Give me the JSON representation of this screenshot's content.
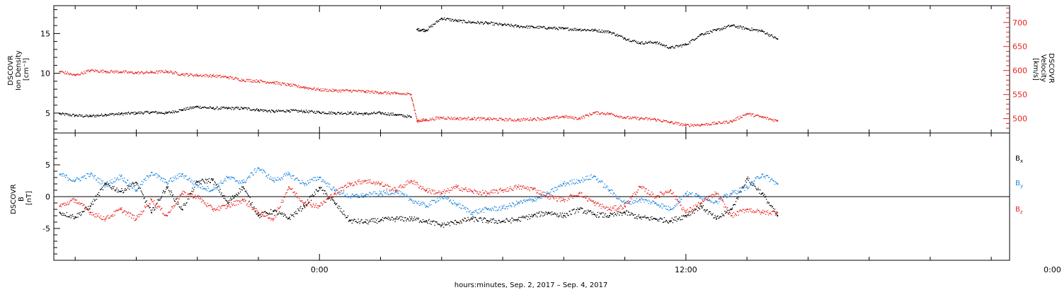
{
  "chart_data": [
    {
      "type": "scatter",
      "panel": "plasma",
      "left_axis": {
        "label_lines": [
          "DSCOVR",
          "Ion Density",
          "[cm⁻³]"
        ],
        "ticks": [
          5,
          10,
          15
        ],
        "ylim": [
          2.5,
          18.5
        ],
        "color": "#000000"
      },
      "right_axis": {
        "label_lines": [
          "DSCOVR",
          "Velocity",
          "[km/s]"
        ],
        "ticks": [
          500,
          550,
          600,
          650,
          700
        ],
        "ylim": [
          470,
          735
        ],
        "color": "#e8231f"
      },
      "series": [
        {
          "name": "",
          "axis": "left",
          "color": "#000000",
          "points": [
            [
              -8.5,
              4.9
            ],
            [
              -8.0,
              4.7
            ],
            [
              -7.5,
              4.6
            ],
            [
              -7.0,
              4.8
            ],
            [
              -6.5,
              4.9
            ],
            [
              -6.0,
              5.0
            ],
            [
              -5.5,
              5.1
            ],
            [
              -5.0,
              5.0
            ],
            [
              -4.5,
              5.4
            ],
            [
              -4.0,
              5.8
            ],
            [
              -3.5,
              5.6
            ],
            [
              -3.0,
              5.6
            ],
            [
              -2.5,
              5.6
            ],
            [
              -2.0,
              5.4
            ],
            [
              -1.5,
              5.2
            ],
            [
              -1.0,
              5.3
            ],
            [
              -0.5,
              5.2
            ],
            [
              0.0,
              5.1
            ],
            [
              0.5,
              5.0
            ],
            [
              1.0,
              5.0
            ],
            [
              1.5,
              4.9
            ],
            [
              2.0,
              5.0
            ],
            [
              2.5,
              4.8
            ],
            [
              3.0,
              4.5
            ],
            [
              3.2,
              15.5
            ],
            [
              3.5,
              15.4
            ],
            [
              4.0,
              16.9
            ],
            [
              4.5,
              16.6
            ],
            [
              5.0,
              16.4
            ],
            [
              5.5,
              16.3
            ],
            [
              6.0,
              16.1
            ],
            [
              6.5,
              15.9
            ],
            [
              7.0,
              15.8
            ],
            [
              7.5,
              15.7
            ],
            [
              8.0,
              15.6
            ],
            [
              8.5,
              15.5
            ],
            [
              9.0,
              15.4
            ],
            [
              9.5,
              15.2
            ],
            [
              10.0,
              14.4
            ],
            [
              10.5,
              13.8
            ],
            [
              11.0,
              13.9
            ],
            [
              11.5,
              13.2
            ],
            [
              12.0,
              13.6
            ],
            [
              12.5,
              14.9
            ],
            [
              13.0,
              15.4
            ],
            [
              13.5,
              16.0
            ],
            [
              14.0,
              15.6
            ],
            [
              14.5,
              15.3
            ],
            [
              15.0,
              14.3
            ]
          ]
        },
        {
          "name": "",
          "axis": "right",
          "color": "#e8231f",
          "points": [
            [
              -8.5,
              598
            ],
            [
              -8.0,
              590
            ],
            [
              -7.5,
              600
            ],
            [
              -7.0,
              598
            ],
            [
              -6.5,
              597
            ],
            [
              -6.0,
              595
            ],
            [
              -5.5,
              596
            ],
            [
              -5.0,
              598
            ],
            [
              -4.5,
              592
            ],
            [
              -4.0,
              590
            ],
            [
              -3.5,
              589
            ],
            [
              -3.0,
              586
            ],
            [
              -2.5,
              580
            ],
            [
              -2.0,
              578
            ],
            [
              -1.5,
              575
            ],
            [
              -1.0,
              570
            ],
            [
              -0.5,
              565
            ],
            [
              0.0,
              560
            ],
            [
              0.5,
              558
            ],
            [
              1.0,
              558
            ],
            [
              1.5,
              556
            ],
            [
              2.0,
              554
            ],
            [
              2.5,
              552
            ],
            [
              3.0,
              550
            ],
            [
              3.2,
              495
            ],
            [
              3.5,
              497
            ],
            [
              4.0,
              502
            ],
            [
              4.5,
              500
            ],
            [
              5.0,
              500
            ],
            [
              5.5,
              499
            ],
            [
              6.0,
              498
            ],
            [
              6.5,
              497
            ],
            [
              7.0,
              499
            ],
            [
              7.5,
              500
            ],
            [
              8.0,
              504
            ],
            [
              8.5,
              500
            ],
            [
              9.0,
              512
            ],
            [
              9.5,
              510
            ],
            [
              10.0,
              502
            ],
            [
              10.5,
              500
            ],
            [
              11.0,
              498
            ],
            [
              11.5,
              492
            ],
            [
              12.0,
              486
            ],
            [
              12.5,
              487
            ],
            [
              13.0,
              490
            ],
            [
              13.5,
              494
            ],
            [
              14.0,
              510
            ],
            [
              14.5,
              503
            ],
            [
              15.0,
              495
            ]
          ]
        }
      ]
    },
    {
      "type": "scatter",
      "panel": "magnetic-field",
      "left_axis": {
        "label_lines": [
          "DSCOVR",
          "B",
          "[nT]"
        ],
        "ticks": [
          -5,
          0,
          5
        ],
        "ylim": [
          -10,
          10
        ],
        "color": "#000000"
      },
      "zero_line": true,
      "legend": {
        "position": "right",
        "items": [
          {
            "text": "B",
            "sub": "x",
            "color": "#000000"
          },
          {
            "text": "B",
            "sub": "y",
            "color": "#1f86dd"
          },
          {
            "text": "B",
            "sub": "z",
            "color": "#e8231f"
          }
        ]
      },
      "series": [
        {
          "name": "Bx",
          "color": "#000000",
          "points": [
            [
              -8.5,
              -2.5
            ],
            [
              -8.0,
              -3.2
            ],
            [
              -7.5,
              -1.5
            ],
            [
              -7.0,
              2.0
            ],
            [
              -6.5,
              0.8
            ],
            [
              -6.0,
              2.2
            ],
            [
              -5.5,
              -2.5
            ],
            [
              -5.0,
              1.5
            ],
            [
              -4.5,
              -2.0
            ],
            [
              -4.0,
              2.3
            ],
            [
              -3.5,
              2.6
            ],
            [
              -3.0,
              -1.0
            ],
            [
              -2.5,
              1.5
            ],
            [
              -2.0,
              -3.0
            ],
            [
              -1.5,
              -2.3
            ],
            [
              -1.0,
              -3.4
            ],
            [
              -0.5,
              -1.5
            ],
            [
              0.0,
              1.4
            ],
            [
              0.5,
              -1.0
            ],
            [
              1.0,
              -3.8
            ],
            [
              1.5,
              -4.0
            ],
            [
              2.0,
              -3.7
            ],
            [
              2.5,
              -3.5
            ],
            [
              3.0,
              -3.5
            ],
            [
              3.5,
              -3.8
            ],
            [
              4.0,
              -4.5
            ],
            [
              4.5,
              -4.0
            ],
            [
              5.0,
              -3.5
            ],
            [
              5.5,
              -3.8
            ],
            [
              6.0,
              -3.9
            ],
            [
              6.5,
              -3.6
            ],
            [
              7.0,
              -3.0
            ],
            [
              7.5,
              -2.5
            ],
            [
              8.0,
              -3.0
            ],
            [
              8.5,
              -2.0
            ],
            [
              9.0,
              -2.8
            ],
            [
              9.5,
              -3.0
            ],
            [
              10.0,
              -2.5
            ],
            [
              10.5,
              -3.3
            ],
            [
              11.0,
              -3.5
            ],
            [
              11.5,
              -3.8
            ],
            [
              12.0,
              -3.0
            ],
            [
              12.5,
              -1.5
            ],
            [
              13.0,
              -3.5
            ],
            [
              13.5,
              -2.0
            ],
            [
              14.0,
              2.8
            ],
            [
              14.5,
              0.5
            ],
            [
              15.0,
              -3.0
            ]
          ]
        },
        {
          "name": "By",
          "color": "#1f86dd",
          "points": [
            [
              -8.5,
              3.5
            ],
            [
              -8.0,
              2.5
            ],
            [
              -7.5,
              3.5
            ],
            [
              -7.0,
              1.8
            ],
            [
              -6.5,
              3.2
            ],
            [
              -6.0,
              1.0
            ],
            [
              -5.5,
              3.8
            ],
            [
              -5.0,
              2.2
            ],
            [
              -4.5,
              3.5
            ],
            [
              -4.0,
              1.8
            ],
            [
              -3.5,
              1.0
            ],
            [
              -3.0,
              3.0
            ],
            [
              -2.5,
              2.2
            ],
            [
              -2.0,
              4.5
            ],
            [
              -1.5,
              2.5
            ],
            [
              -1.0,
              3.5
            ],
            [
              -0.5,
              2.0
            ],
            [
              0.0,
              3.0
            ],
            [
              0.5,
              1.0
            ],
            [
              1.0,
              0.0
            ],
            [
              1.5,
              0.2
            ],
            [
              2.0,
              0.5
            ],
            [
              2.5,
              0.8
            ],
            [
              3.0,
              -0.5
            ],
            [
              3.5,
              -1.5
            ],
            [
              4.0,
              0.0
            ],
            [
              4.5,
              -1.2
            ],
            [
              5.0,
              -2.5
            ],
            [
              5.5,
              -2.0
            ],
            [
              6.0,
              -1.8
            ],
            [
              6.5,
              -1.0
            ],
            [
              7.0,
              -0.5
            ],
            [
              7.5,
              0.5
            ],
            [
              8.0,
              2.0
            ],
            [
              8.5,
              2.5
            ],
            [
              9.0,
              3.2
            ],
            [
              9.5,
              1.0
            ],
            [
              10.0,
              -1.0
            ],
            [
              10.5,
              -0.5
            ],
            [
              11.0,
              -1.0
            ],
            [
              11.5,
              -2.0
            ],
            [
              12.0,
              0.5
            ],
            [
              12.5,
              0.0
            ],
            [
              13.0,
              -0.8
            ],
            [
              13.5,
              0.5
            ],
            [
              14.0,
              1.5
            ],
            [
              14.5,
              3.5
            ],
            [
              15.0,
              2.0
            ]
          ]
        },
        {
          "name": "Bz",
          "color": "#e8231f",
          "points": [
            [
              -8.5,
              -1.5
            ],
            [
              -8.0,
              -0.5
            ],
            [
              -7.5,
              -2.5
            ],
            [
              -7.0,
              -3.5
            ],
            [
              -6.5,
              -2.0
            ],
            [
              -6.0,
              -3.5
            ],
            [
              -5.5,
              -0.5
            ],
            [
              -5.0,
              -3.0
            ],
            [
              -4.5,
              0.5
            ],
            [
              -4.0,
              0.0
            ],
            [
              -3.5,
              -2.0
            ],
            [
              -3.0,
              -1.5
            ],
            [
              -2.5,
              -0.5
            ],
            [
              -2.0,
              -2.5
            ],
            [
              -1.5,
              -3.5
            ],
            [
              -1.0,
              1.5
            ],
            [
              -0.5,
              -1.0
            ],
            [
              0.0,
              -1.5
            ],
            [
              0.5,
              0.5
            ],
            [
              1.0,
              2.0
            ],
            [
              1.5,
              2.5
            ],
            [
              2.0,
              2.0
            ],
            [
              2.5,
              1.0
            ],
            [
              3.0,
              2.5
            ],
            [
              3.5,
              1.0
            ],
            [
              4.0,
              0.5
            ],
            [
              4.5,
              1.5
            ],
            [
              5.0,
              0.8
            ],
            [
              5.5,
              0.5
            ],
            [
              6.0,
              1.0
            ],
            [
              6.5,
              1.5
            ],
            [
              7.0,
              1.2
            ],
            [
              7.5,
              0.0
            ],
            [
              8.0,
              -0.5
            ],
            [
              8.5,
              0.5
            ],
            [
              9.0,
              -1.0
            ],
            [
              9.5,
              -2.0
            ],
            [
              10.0,
              -1.5
            ],
            [
              10.5,
              1.5
            ],
            [
              11.0,
              0.0
            ],
            [
              11.5,
              1.0
            ],
            [
              12.0,
              -2.5
            ],
            [
              12.5,
              -1.0
            ],
            [
              13.0,
              0.5
            ],
            [
              13.5,
              -3.0
            ],
            [
              14.0,
              -2.0
            ],
            [
              14.5,
              -2.5
            ],
            [
              15.0,
              -2.5
            ]
          ]
        }
      ]
    }
  ],
  "x_axis": {
    "xlim": [
      -8.7,
      22.6
    ],
    "tick_labels": [
      {
        "x": 0,
        "text": "0:00"
      },
      {
        "x": 12,
        "text": "12:00"
      },
      {
        "x": 24,
        "text": "0:00"
      }
    ],
    "minor_every_hours": 2,
    "label": "hours:minutes, Sep.  2, 2017 – Sep.  4, 2017"
  }
}
